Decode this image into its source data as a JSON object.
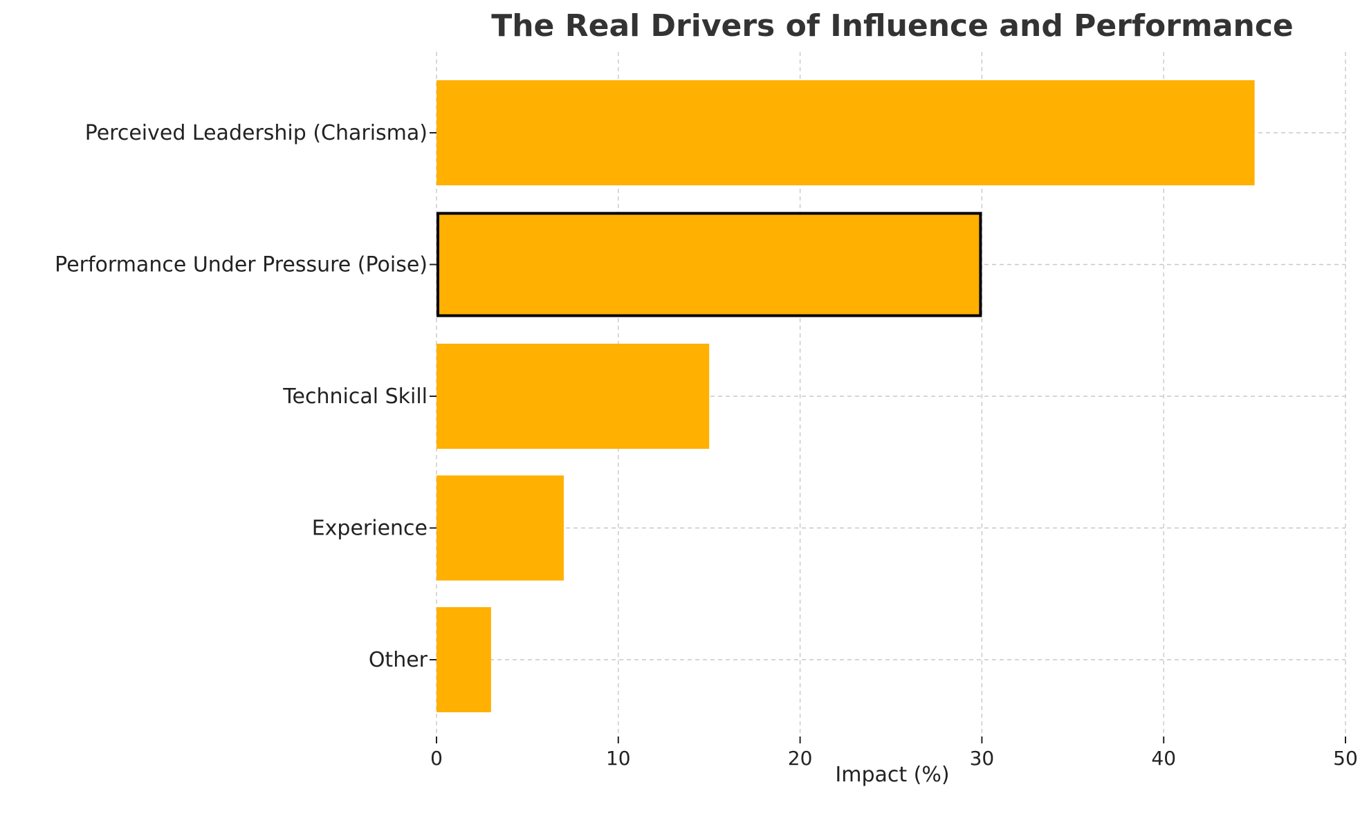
{
  "chart_data": {
    "type": "bar",
    "orientation": "horizontal",
    "title": "The Real Drivers of Influence and Performance",
    "xlabel": "Impact (%)",
    "ylabel": "",
    "xlim": [
      0,
      50
    ],
    "xticks": [
      0,
      10,
      20,
      30,
      40,
      50
    ],
    "grid": true,
    "categories": [
      "Perceived Leadership (Charisma)",
      "Performance Under Pressure (Poise)",
      "Technical Skill",
      "Experience",
      "Other"
    ],
    "values": [
      45,
      30,
      15,
      7,
      3
    ],
    "highlighted_category": "Performance Under Pressure (Poise)",
    "bar_color": "#ffb000",
    "highlight_edge_color": "#000000"
  }
}
